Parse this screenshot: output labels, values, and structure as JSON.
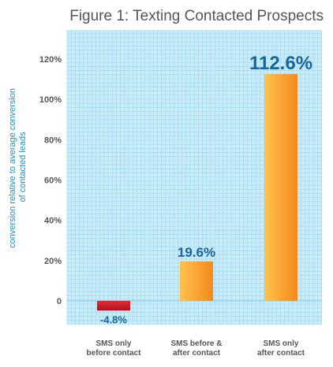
{
  "chart_data": {
    "type": "bar",
    "title": "Figure 1: Texting Contacted Prospects",
    "ylabel": [
      "conversion relative to average conversion",
      "of contacted leads"
    ],
    "xlabel": "",
    "ylim": [
      -10,
      130
    ],
    "yticks": [
      0,
      20,
      40,
      60,
      80,
      100,
      120
    ],
    "ytick_labels": [
      "0",
      "20%",
      "40%",
      "60%",
      "80%",
      "100%",
      "120%"
    ],
    "grid": true,
    "categories": [
      [
        "SMS only",
        "before contact"
      ],
      [
        "SMS before &",
        "after contact"
      ],
      [
        "SMS only",
        "after contact"
      ]
    ],
    "values": [
      -4.8,
      19.6,
      112.6
    ],
    "value_labels": [
      "-4.8%",
      "19.6%",
      "112.6%"
    ],
    "colors": {
      "negative": "#d8182a",
      "positive_light": "#ffc04a",
      "positive_dark": "#f58a1e",
      "grid_bg": "#c8ecf8",
      "grid_line": "#9fd6ee",
      "label_blue": "#17659e",
      "axis_label": "#1f8fc2"
    }
  }
}
